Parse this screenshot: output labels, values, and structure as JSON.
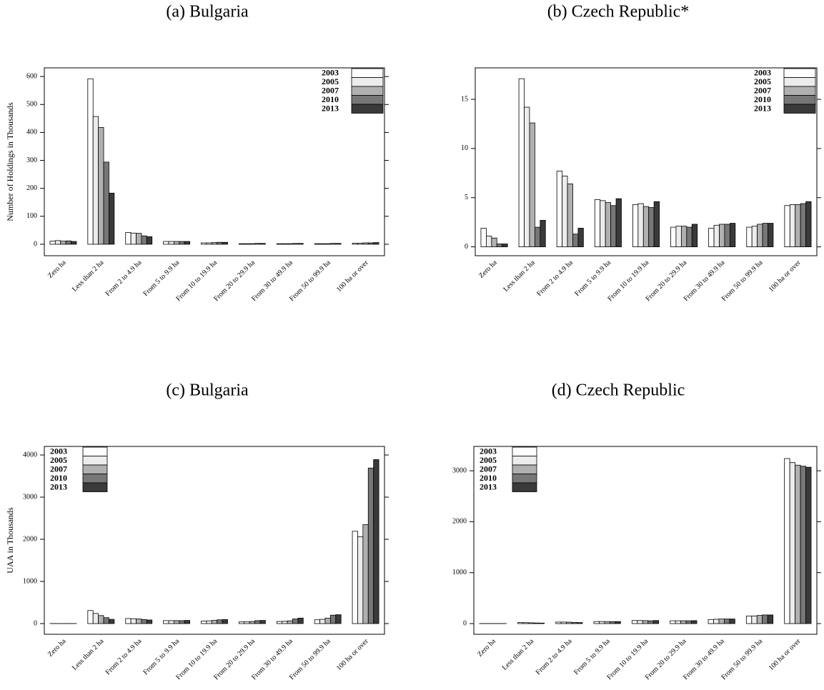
{
  "chart_data": [
    {
      "type": "bar",
      "title": "(a) Bulgaria",
      "ylabel": "Number of Holdings in Thousands",
      "categories": [
        "Zero ha",
        "Less than 2 ha",
        "From 2 to 4.9 ha",
        "From 5 to 9.9 ha",
        "From 10 to 19.9 ha",
        "From 20 to 29.9 ha",
        "From 30 to 49.9 ha",
        "From 50 to 99.9 ha",
        "100 ha or over"
      ],
      "series": [
        {
          "name": "2003",
          "color": "#ffffff",
          "values": [
            11,
            592,
            42,
            10,
            5,
            2,
            2,
            2,
            4
          ]
        },
        {
          "name": "2005",
          "color": "#ececec",
          "values": [
            13,
            457,
            40,
            10,
            5,
            2,
            2,
            2,
            4
          ]
        },
        {
          "name": "2007",
          "color": "#b0b0b0",
          "values": [
            11,
            418,
            39,
            10,
            6,
            2,
            2,
            2,
            5
          ]
        },
        {
          "name": "2010",
          "color": "#777777",
          "values": [
            12,
            294,
            30,
            10,
            7,
            3,
            3,
            3,
            5
          ]
        },
        {
          "name": "2013",
          "color": "#3a3a3a",
          "values": [
            10,
            183,
            27,
            10,
            7,
            3,
            3,
            3,
            6
          ]
        }
      ],
      "ylim": [
        -41,
        631
      ],
      "yticks": [
        0,
        100,
        200,
        300,
        400,
        500,
        600
      ],
      "legend": "top-right"
    },
    {
      "type": "bar",
      "title": "(b) Czech Republic*",
      "categories": [
        "Zero ha",
        "Less than 2 ha",
        "From 2 to 4.9 ha",
        "From 5 to 9.9 ha",
        "From 10 to 19.9 ha",
        "From 20 to 29.9 ha",
        "From 30 to 49.9 ha",
        "From 50 to 99.9 ha",
        "100 ha or over"
      ],
      "series": [
        {
          "name": "2003",
          "color": "#ffffff",
          "values": [
            1.9,
            17.1,
            7.7,
            4.8,
            4.3,
            2.0,
            1.9,
            2.0,
            4.2
          ]
        },
        {
          "name": "2005",
          "color": "#ececec",
          "values": [
            1.1,
            14.2,
            7.2,
            4.7,
            4.4,
            2.1,
            2.2,
            2.1,
            4.3
          ]
        },
        {
          "name": "2007",
          "color": "#b0b0b0",
          "values": [
            0.9,
            12.6,
            6.4,
            4.5,
            4.1,
            2.1,
            2.3,
            2.3,
            4.3
          ]
        },
        {
          "name": "2010",
          "color": "#777777",
          "values": [
            0.3,
            2.0,
            1.3,
            4.2,
            4.0,
            2.0,
            2.3,
            2.4,
            4.4
          ]
        },
        {
          "name": "2013",
          "color": "#3a3a3a",
          "values": [
            0.3,
            2.7,
            1.9,
            4.9,
            4.6,
            2.3,
            2.4,
            2.4,
            4.6
          ]
        }
      ],
      "ylim": [
        -0.9,
        18.2
      ],
      "yticks": [
        0,
        5,
        10,
        15
      ],
      "legend": "top-right"
    },
    {
      "type": "bar",
      "title": "(c) Bulgaria",
      "ylabel": "UAA in Thousands",
      "categories": [
        "Zero ha",
        "Less than 2 ha",
        "From 2 to 4.9 ha",
        "From 5 to 9.9 ha",
        "From 10 to 19.9 ha",
        "From 20 to 29.9 ha",
        "From 30 to 49.9 ha",
        "From 50 to 99.9 ha",
        "100 ha or over"
      ],
      "series": [
        {
          "name": "2003",
          "color": "#ffffff",
          "values": [
            2,
            310,
            120,
            70,
            60,
            40,
            50,
            90,
            2190
          ]
        },
        {
          "name": "2005",
          "color": "#ececec",
          "values": [
            2,
            240,
            115,
            70,
            65,
            45,
            55,
            100,
            2060
          ]
        },
        {
          "name": "2007",
          "color": "#b0b0b0",
          "values": [
            2,
            190,
            110,
            70,
            75,
            50,
            65,
            130,
            2350
          ]
        },
        {
          "name": "2010",
          "color": "#777777",
          "values": [
            2,
            140,
            95,
            70,
            90,
            70,
            110,
            200,
            3690
          ]
        },
        {
          "name": "2013",
          "color": "#3a3a3a",
          "values": [
            2,
            100,
            85,
            75,
            95,
            75,
            130,
            210,
            3890
          ]
        }
      ],
      "ylim": [
        -254,
        4203
      ],
      "yticks": [
        0,
        1000,
        2000,
        3000,
        4000
      ],
      "legend": "top-left"
    },
    {
      "type": "bar",
      "title": "(d) Czech Republic",
      "categories": [
        "Zero ha",
        "Less than 2 ha",
        "From 2 to 4.9 ha",
        "From 5 to 9.9 ha",
        "From 10 to 19.9 ha",
        "From 20 to 29.9 ha",
        "From 30 to 49.9 ha",
        "From 50 to 99.9 ha",
        "100 ha or over"
      ],
      "series": [
        {
          "name": "2003",
          "color": "#ffffff",
          "values": [
            2,
            20,
            30,
            40,
            60,
            55,
            80,
            150,
            3240
          ]
        },
        {
          "name": "2005",
          "color": "#ececec",
          "values": [
            2,
            18,
            30,
            40,
            60,
            55,
            85,
            150,
            3160
          ]
        },
        {
          "name": "2007",
          "color": "#b0b0b0",
          "values": [
            2,
            16,
            28,
            40,
            58,
            55,
            90,
            160,
            3110
          ]
        },
        {
          "name": "2010",
          "color": "#777777",
          "values": [
            2,
            12,
            22,
            38,
            55,
            55,
            90,
            170,
            3090
          ]
        },
        {
          "name": "2013",
          "color": "#3a3a3a",
          "values": [
            2,
            10,
            20,
            40,
            60,
            58,
            90,
            170,
            3070
          ]
        }
      ],
      "ylim": [
        -210,
        3478
      ],
      "yticks": [
        0,
        1000,
        2000,
        3000
      ],
      "legend": "top-left"
    }
  ]
}
